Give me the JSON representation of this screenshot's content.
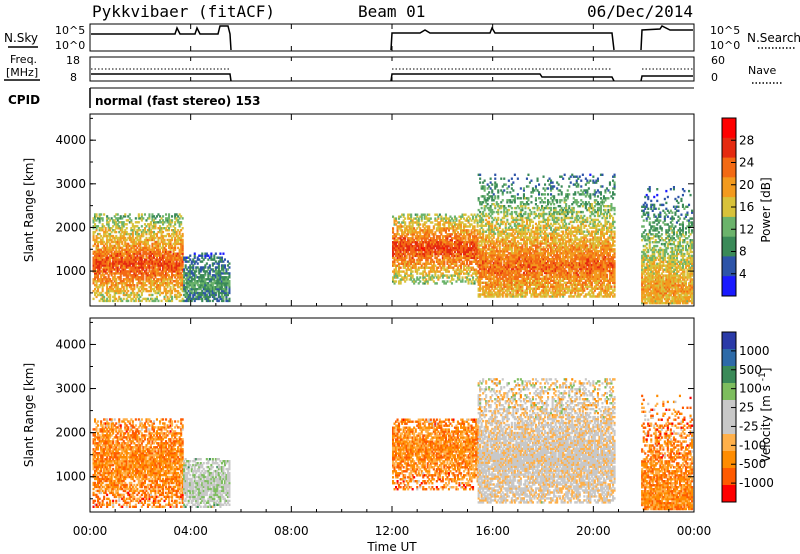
{
  "header": {
    "radar": "Pykkvibaer (fitACF)",
    "beam": "Beam 01",
    "date": "06/Dec/2014"
  },
  "nsky_panel": {
    "left_label": "N.Sky",
    "left_ticks": [
      "10^5",
      "10^0"
    ],
    "right_label": "N.Search",
    "right_ticks": [
      "10^5",
      "10^0"
    ]
  },
  "freq_panel": {
    "left_label_line1": "Freq.",
    "left_label_line2": "[MHz]",
    "left_ticks": [
      "18",
      "8"
    ],
    "right_label": "Nave",
    "right_ticks": [
      "60",
      "0"
    ]
  },
  "cpid_panel": {
    "label": "CPID",
    "text": "normal (fast stereo) 153"
  },
  "colors": {
    "power_scale": [
      "#1a1aff",
      "#2d54a8",
      "#3a8a58",
      "#6bb36b",
      "#d8c23a",
      "#f39a1e",
      "#f36a14",
      "#e52a10",
      "#ff0000"
    ],
    "velocity_scale": [
      "#ff0000",
      "#ff5a00",
      "#ff8c00",
      "#ffb04a",
      "#c8c8c8",
      "#c8c8c8",
      "#7dbd5e",
      "#3a8a58",
      "#2d6aa8",
      "#2a3aa8"
    ]
  },
  "chart_data": {
    "type": "heatmap",
    "xlabel": "Time UT",
    "x_ticks": [
      "00:00",
      "04:00",
      "08:00",
      "12:00",
      "16:00",
      "20:00",
      "00:00"
    ],
    "x_range_hours": [
      0,
      24
    ],
    "panels": [
      {
        "name": "power",
        "ylabel": "Slant Range [km]",
        "y_ticks": [
          "4000",
          "3000",
          "2000",
          "1000"
        ],
        "ylim_km": [
          200,
          4600
        ],
        "colorbar_label": "Power [dB]",
        "colorbar_ticks": [
          "28",
          "24",
          "20",
          "16",
          "12",
          "8",
          "4"
        ],
        "colorbar_range": [
          0,
          32
        ],
        "echo_regions": [
          {
            "t0": 0.1,
            "t1": 3.7,
            "r0": 300,
            "r1": 2300,
            "peak_r": 1150,
            "peak_val": 26
          },
          {
            "t0": 3.7,
            "t1": 5.5,
            "r0": 300,
            "r1": 1400,
            "peak_r": 700,
            "peak_val": 10
          },
          {
            "t0": 12.0,
            "t1": 15.4,
            "r0": 700,
            "r1": 2300,
            "peak_r": 1500,
            "peak_val": 27
          },
          {
            "t0": 15.4,
            "t1": 20.8,
            "r0": 400,
            "r1": 3200,
            "peak_r": 1100,
            "peak_val": 24
          },
          {
            "t0": 21.9,
            "t1": 23.9,
            "r0": 250,
            "r1": 3100,
            "peak_r": 600,
            "peak_val": 20
          }
        ]
      },
      {
        "name": "velocity",
        "ylabel": "Slant Range [km]",
        "y_ticks": [
          "4000",
          "3000",
          "2000",
          "1000"
        ],
        "ylim_km": [
          200,
          4600
        ],
        "colorbar_label": "Velocity [m s^-1]",
        "colorbar_ticks": [
          "1000",
          "500",
          "100",
          "25",
          "-25",
          "-100",
          "-500",
          "-1000"
        ],
        "echo_regions": [
          {
            "t0": 0.1,
            "t1": 3.7,
            "r0": 300,
            "r1": 2300,
            "peak_r": 1300,
            "peak_val": -300
          },
          {
            "t0": 3.7,
            "t1": 5.5,
            "r0": 300,
            "r1": 1400,
            "peak_r": 800,
            "peak_val": 0
          },
          {
            "t0": 12.0,
            "t1": 15.4,
            "r0": 700,
            "r1": 2300,
            "peak_r": 1600,
            "peak_val": -200
          },
          {
            "t0": 15.4,
            "t1": 20.8,
            "r0": 400,
            "r1": 3200,
            "peak_r": 1400,
            "peak_val": -50
          },
          {
            "t0": 21.9,
            "t1": 23.9,
            "r0": 250,
            "r1": 3100,
            "peak_r": 500,
            "peak_val": -150
          }
        ]
      }
    ],
    "operational_gaps_hours": [
      [
        5.5,
        12.0
      ],
      [
        20.8,
        21.9
      ]
    ]
  }
}
